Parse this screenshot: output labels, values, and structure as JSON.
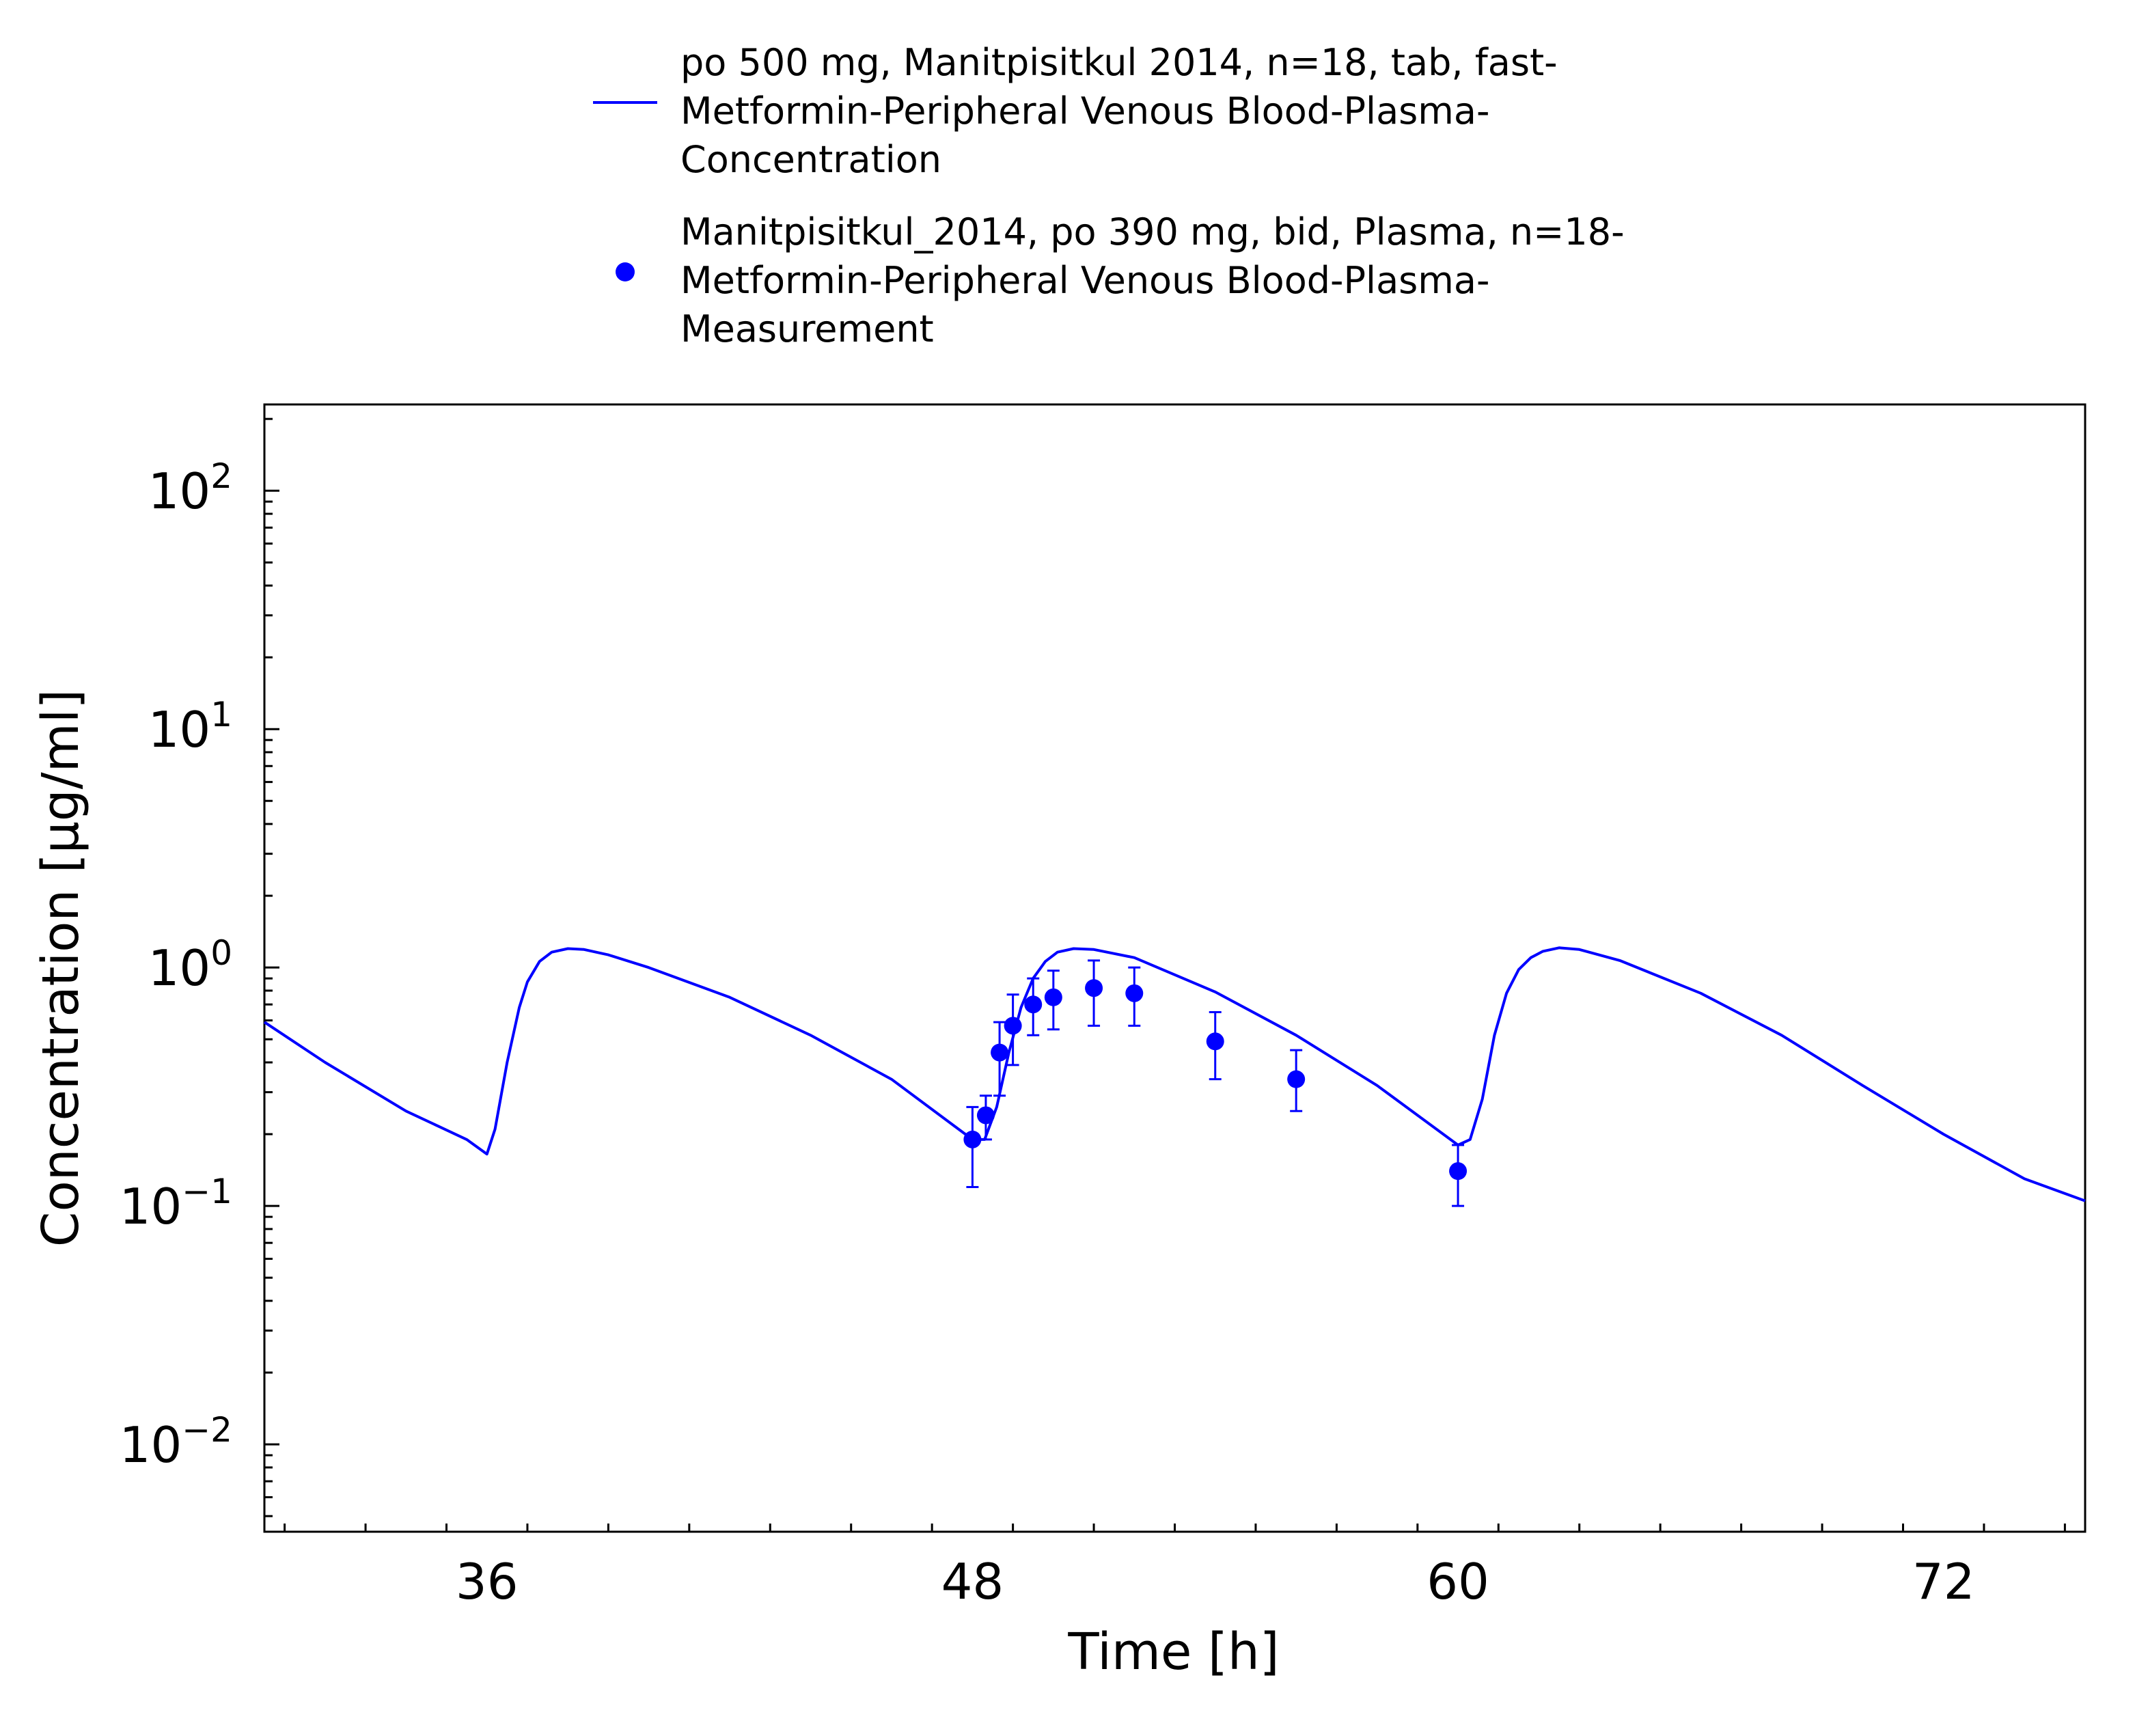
{
  "chart_data": {
    "type": "line",
    "xlabel": "Time [h]",
    "ylabel": "Concentration [µg/ml]",
    "xlim": [
      30.5,
      75.5
    ],
    "ylim": [
      0.0043,
      230
    ],
    "y_scale": "log",
    "x_ticks": [
      36,
      48,
      60,
      72
    ],
    "y_ticks": [
      {
        "value": 0.01,
        "base": "10",
        "exp": "−2"
      },
      {
        "value": 0.1,
        "base": "10",
        "exp": "−1"
      },
      {
        "value": 1,
        "base": "10",
        "exp": "0"
      },
      {
        "value": 10,
        "base": "10",
        "exp": "1"
      },
      {
        "value": 100,
        "base": "10",
        "exp": "2"
      }
    ],
    "grid": false,
    "legend_position": "top",
    "series": [
      {
        "name": "po 500 mg, Manitpisitkul 2014, n=18, tab, fast-Metformin-Peripheral Venous Blood-Plasma-Concentration",
        "legend_lines": [
          "po 500 mg, Manitpisitkul 2014, n=18, tab, fast-",
          "Metformin-Peripheral Venous Blood-Plasma-",
          "Concentration"
        ],
        "kind": "line",
        "color": "#0000ff",
        "x": [
          30.5,
          32,
          34,
          35.5,
          36,
          36.2,
          36.5,
          36.8,
          37,
          37.3,
          37.6,
          38,
          38.4,
          39,
          40,
          42,
          44,
          46,
          48,
          48.3,
          48.6,
          48.9,
          49.2,
          49.5,
          49.8,
          50.1,
          50.5,
          51,
          52,
          54,
          56,
          58,
          60,
          60.3,
          60.6,
          60.9,
          61.2,
          61.5,
          61.8,
          62.1,
          62.5,
          63,
          64,
          66,
          68,
          70,
          72,
          74,
          75.5
        ],
        "y": [
          0.59,
          0.4,
          0.25,
          0.19,
          0.165,
          0.21,
          0.4,
          0.68,
          0.87,
          1.06,
          1.16,
          1.2,
          1.19,
          1.13,
          1.0,
          0.75,
          0.52,
          0.34,
          0.19,
          0.19,
          0.26,
          0.44,
          0.68,
          0.9,
          1.06,
          1.16,
          1.2,
          1.19,
          1.1,
          0.79,
          0.52,
          0.32,
          0.18,
          0.19,
          0.28,
          0.52,
          0.78,
          0.98,
          1.1,
          1.17,
          1.21,
          1.19,
          1.07,
          0.78,
          0.52,
          0.32,
          0.2,
          0.13,
          0.105
        ]
      },
      {
        "name": "Manitpisitkul_2014, po 390 mg, bid, Plasma, n=18-Metformin-Peripheral Venous Blood-Plasma-Measurement",
        "legend_lines": [
          "Manitpisitkul_2014, po 390 mg, bid, Plasma, n=18-",
          "Metformin-Peripheral Venous Blood-Plasma-",
          "Measurement"
        ],
        "kind": "scatter",
        "color": "#0000ff",
        "x": [
          48.0,
          48.33,
          48.67,
          49.0,
          49.5,
          50.0,
          51.0,
          52.0,
          54.0,
          56.0,
          60.0
        ],
        "y": [
          0.19,
          0.24,
          0.44,
          0.57,
          0.7,
          0.75,
          0.82,
          0.78,
          0.49,
          0.34,
          0.14
        ],
        "y_low": [
          0.12,
          0.19,
          0.29,
          0.39,
          0.52,
          0.55,
          0.57,
          0.57,
          0.34,
          0.25,
          0.1
        ],
        "y_high": [
          0.26,
          0.29,
          0.59,
          0.77,
          0.9,
          0.97,
          1.07,
          1.0,
          0.65,
          0.45,
          0.18
        ]
      }
    ]
  }
}
